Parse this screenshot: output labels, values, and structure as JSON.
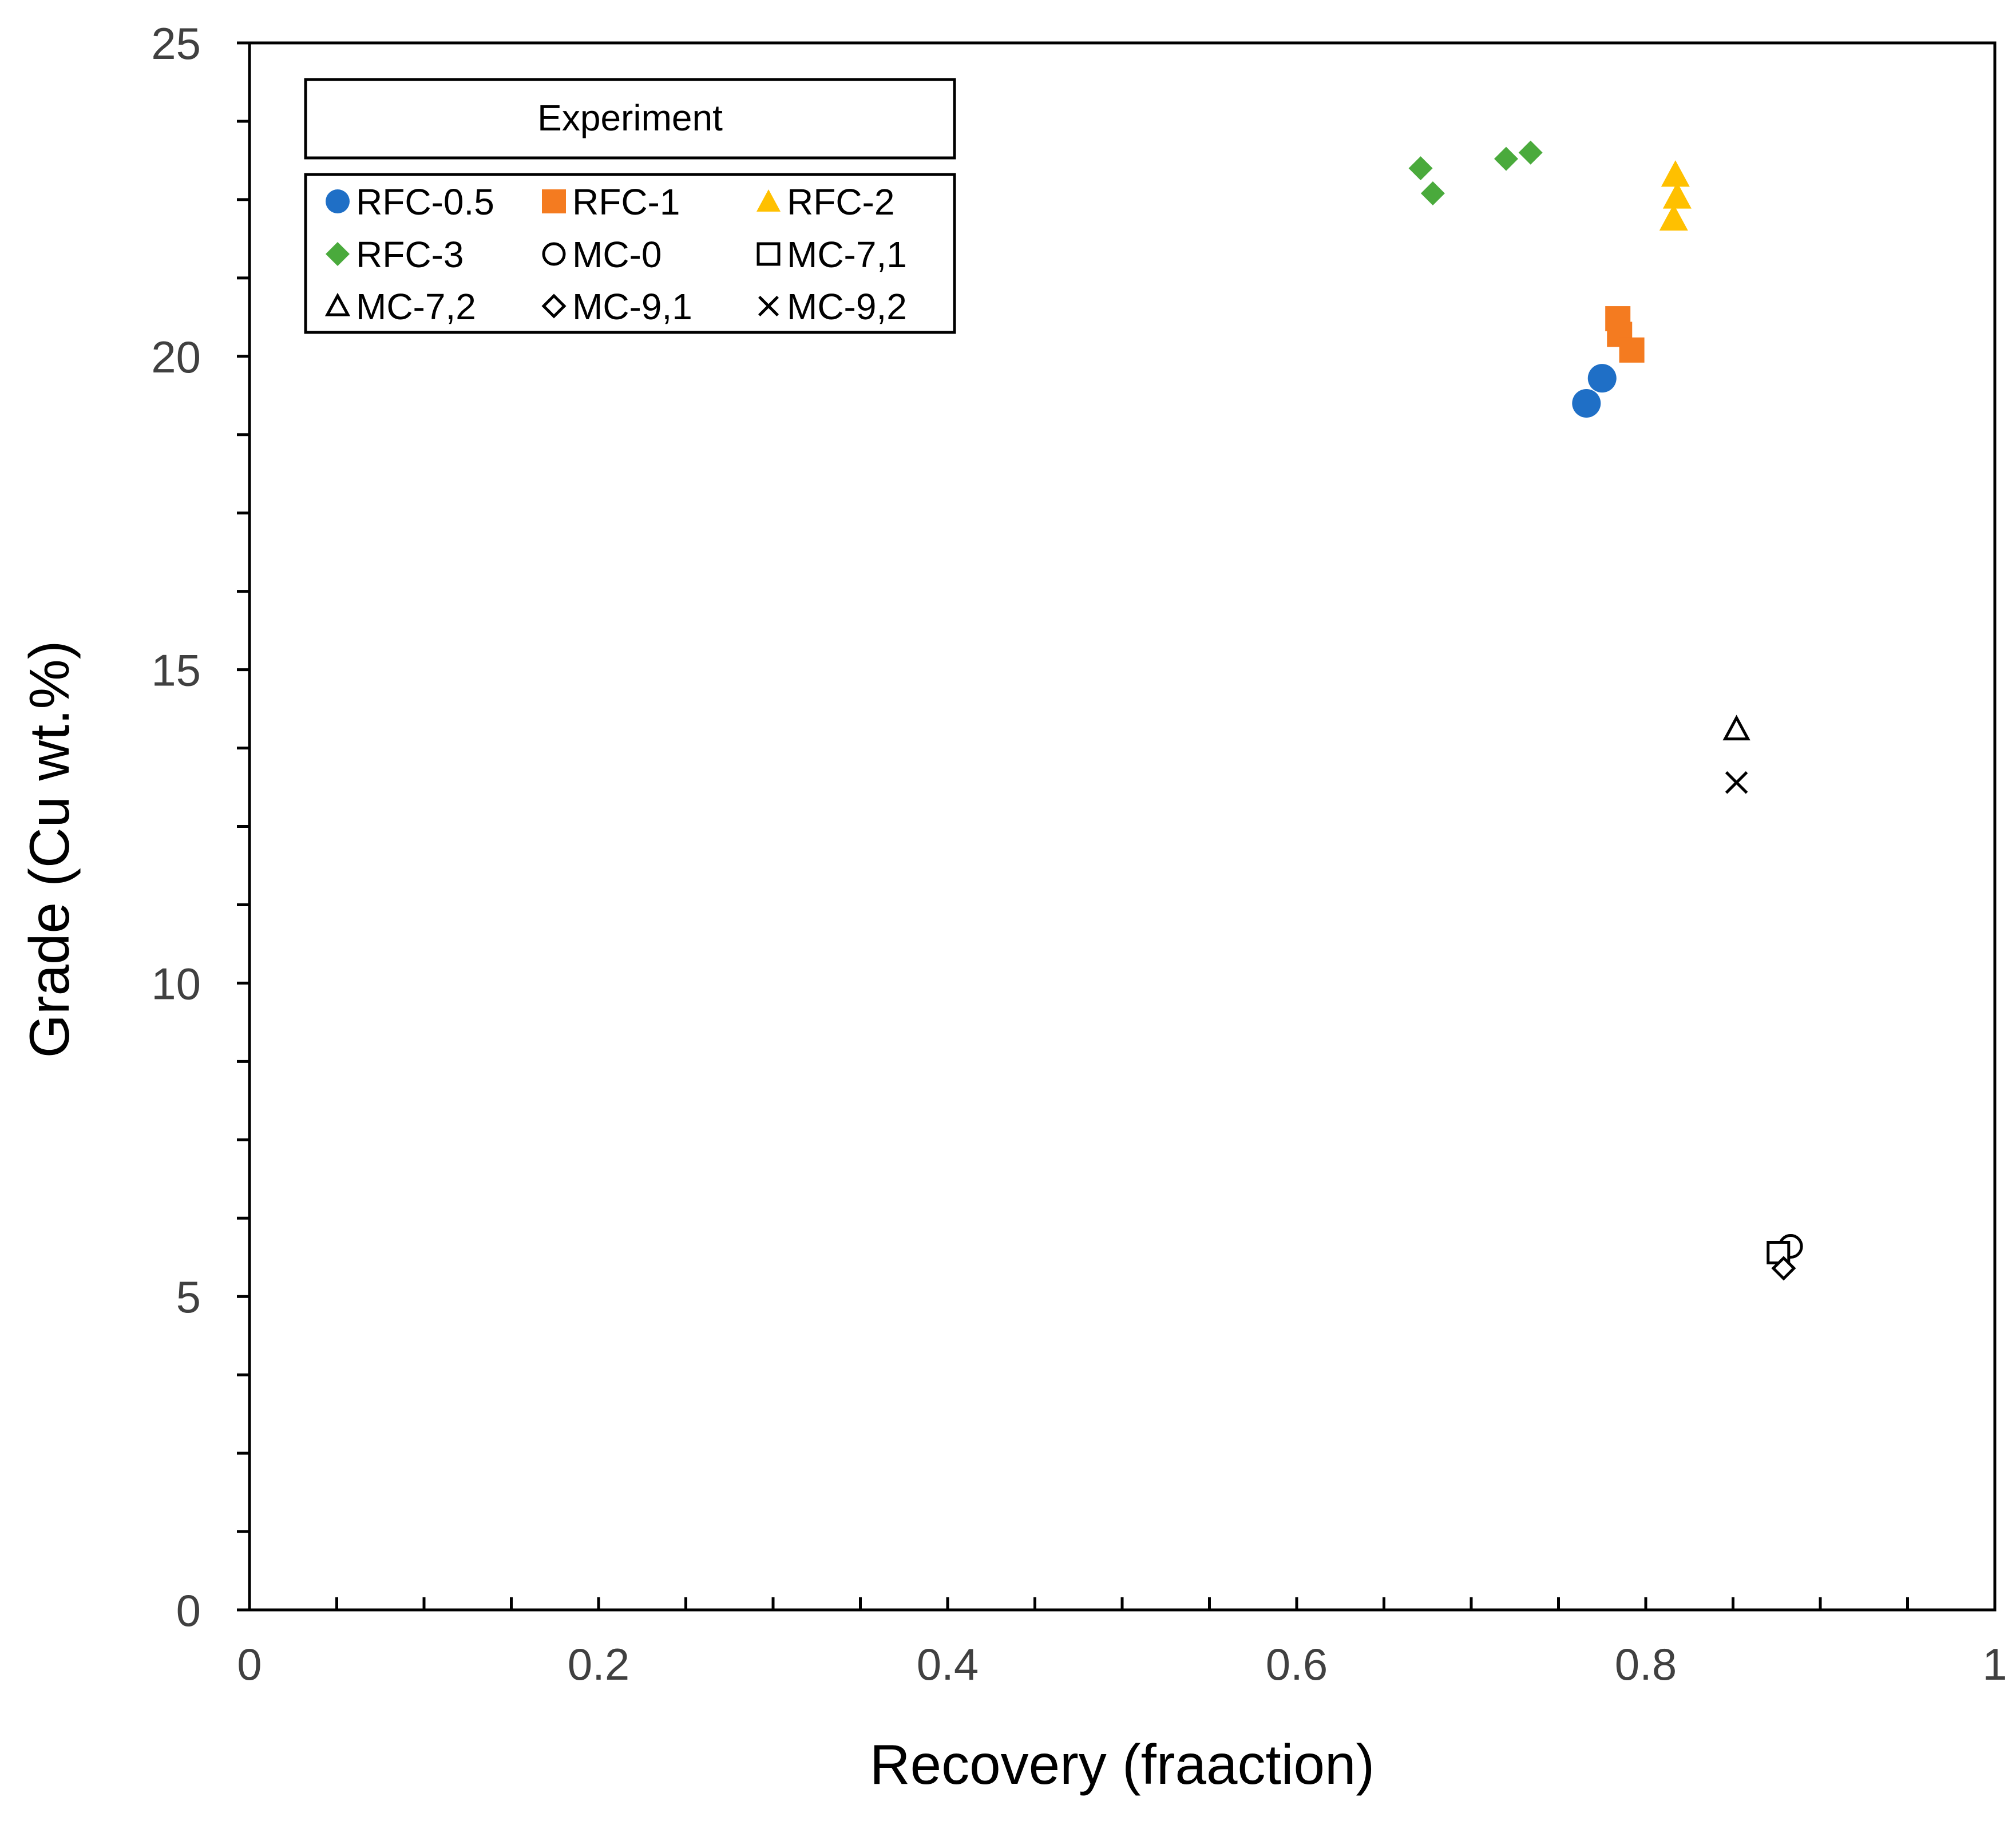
{
  "chart_data": {
    "type": "scatter",
    "title": "",
    "xlabel": "Recovery (fraaction)",
    "ylabel": "Grade (Cu wt.%)",
    "xlim": [
      0,
      1
    ],
    "ylim": [
      0,
      25
    ],
    "x_major_ticks": [
      0,
      0.2,
      0.4,
      0.6,
      0.8,
      1
    ],
    "x_tick_labels": [
      "0",
      "0.2",
      "0.4",
      "0.6",
      "0.8",
      "1"
    ],
    "x_minor_step": 0.05,
    "y_major_ticks": [
      0,
      5,
      10,
      15,
      20,
      25
    ],
    "y_tick_labels": [
      "0",
      "5",
      "10",
      "15",
      "20",
      "25"
    ],
    "y_minor_step": 1.25,
    "grid": false,
    "legend": {
      "title": "Experiment",
      "position": "top-left",
      "columns": 3
    },
    "series": [
      {
        "name": "RFC-0.5",
        "marker": "circle",
        "filled": true,
        "color": "#1F6FC6",
        "points": [
          [
            0.766,
            19.25
          ],
          [
            0.775,
            19.65
          ]
        ]
      },
      {
        "name": "RFC-1",
        "marker": "square",
        "filled": true,
        "color": "#F47B20",
        "points": [
          [
            0.784,
            20.6
          ],
          [
            0.785,
            20.35
          ],
          [
            0.792,
            20.1
          ]
        ]
      },
      {
        "name": "RFC-2",
        "marker": "triangle",
        "filled": true,
        "color": "#FFC000",
        "points": [
          [
            0.817,
            22.9
          ],
          [
            0.818,
            22.55
          ],
          [
            0.816,
            22.2
          ]
        ]
      },
      {
        "name": "RFC-3",
        "marker": "diamond",
        "filled": true,
        "color": "#4AAA3C",
        "points": [
          [
            0.671,
            23.0
          ],
          [
            0.678,
            22.6
          ],
          [
            0.72,
            23.15
          ],
          [
            0.734,
            23.25
          ]
        ]
      },
      {
        "name": "MC-0",
        "marker": "circle",
        "filled": false,
        "color": "#000000",
        "points": [
          [
            0.883,
            5.8
          ]
        ]
      },
      {
        "name": "MC-7,1",
        "marker": "square",
        "filled": false,
        "color": "#000000",
        "points": [
          [
            0.876,
            5.7
          ]
        ]
      },
      {
        "name": "MC-7,2",
        "marker": "triangle",
        "filled": false,
        "color": "#000000",
        "points": [
          [
            0.852,
            14.05
          ]
        ]
      },
      {
        "name": "MC-9,1",
        "marker": "diamond",
        "filled": false,
        "color": "#000000",
        "points": [
          [
            0.879,
            5.45
          ]
        ]
      },
      {
        "name": "MC-9,2",
        "marker": "x",
        "filled": false,
        "color": "#000000",
        "points": [
          [
            0.852,
            13.2
          ]
        ]
      }
    ]
  }
}
